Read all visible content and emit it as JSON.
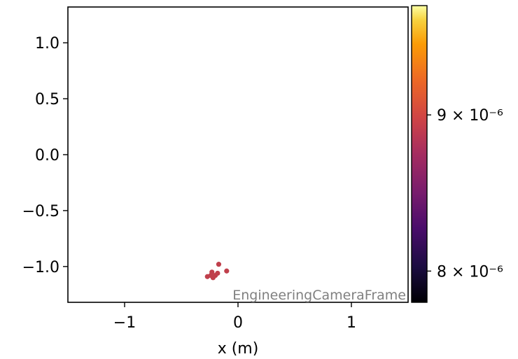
{
  "chart_data": {
    "type": "scatter",
    "title": "",
    "xlabel": "x  (m)",
    "ylabel": "",
    "xlim": [
      -1.5,
      1.5
    ],
    "ylim": [
      -1.32,
      1.32
    ],
    "x_ticks": [
      {
        "value": -1,
        "label": "−1"
      },
      {
        "value": 0,
        "label": "0"
      },
      {
        "value": 1,
        "label": "1"
      }
    ],
    "y_ticks": [
      {
        "value": 1.0,
        "label": "1.0"
      },
      {
        "value": 0.5,
        "label": "0.5"
      },
      {
        "value": 0.0,
        "label": "0.0"
      },
      {
        "value": -0.5,
        "label": "−0.5"
      },
      {
        "value": -1.0,
        "label": "−1.0"
      }
    ],
    "points": [
      {
        "x": -0.17,
        "y": -0.98
      },
      {
        "x": -0.1,
        "y": -1.04
      },
      {
        "x": -0.23,
        "y": -1.05
      },
      {
        "x": -0.18,
        "y": -1.06
      },
      {
        "x": -0.24,
        "y": -1.08
      },
      {
        "x": -0.2,
        "y": -1.08
      },
      {
        "x": -0.27,
        "y": -1.09
      },
      {
        "x": -0.22,
        "y": -1.1
      }
    ],
    "point_color": "#c0404c",
    "frame_label": "EngineeringCameraFrame",
    "colorbar": {
      "colormap": "inferno",
      "range": [
        7.8e-06,
        9.7e-06
      ],
      "ticks": [
        {
          "value": 8e-06,
          "label": "8 × 10⁻⁶"
        },
        {
          "value": 9e-06,
          "label": "9 × 10⁻⁶"
        }
      ]
    },
    "grid": false
  }
}
